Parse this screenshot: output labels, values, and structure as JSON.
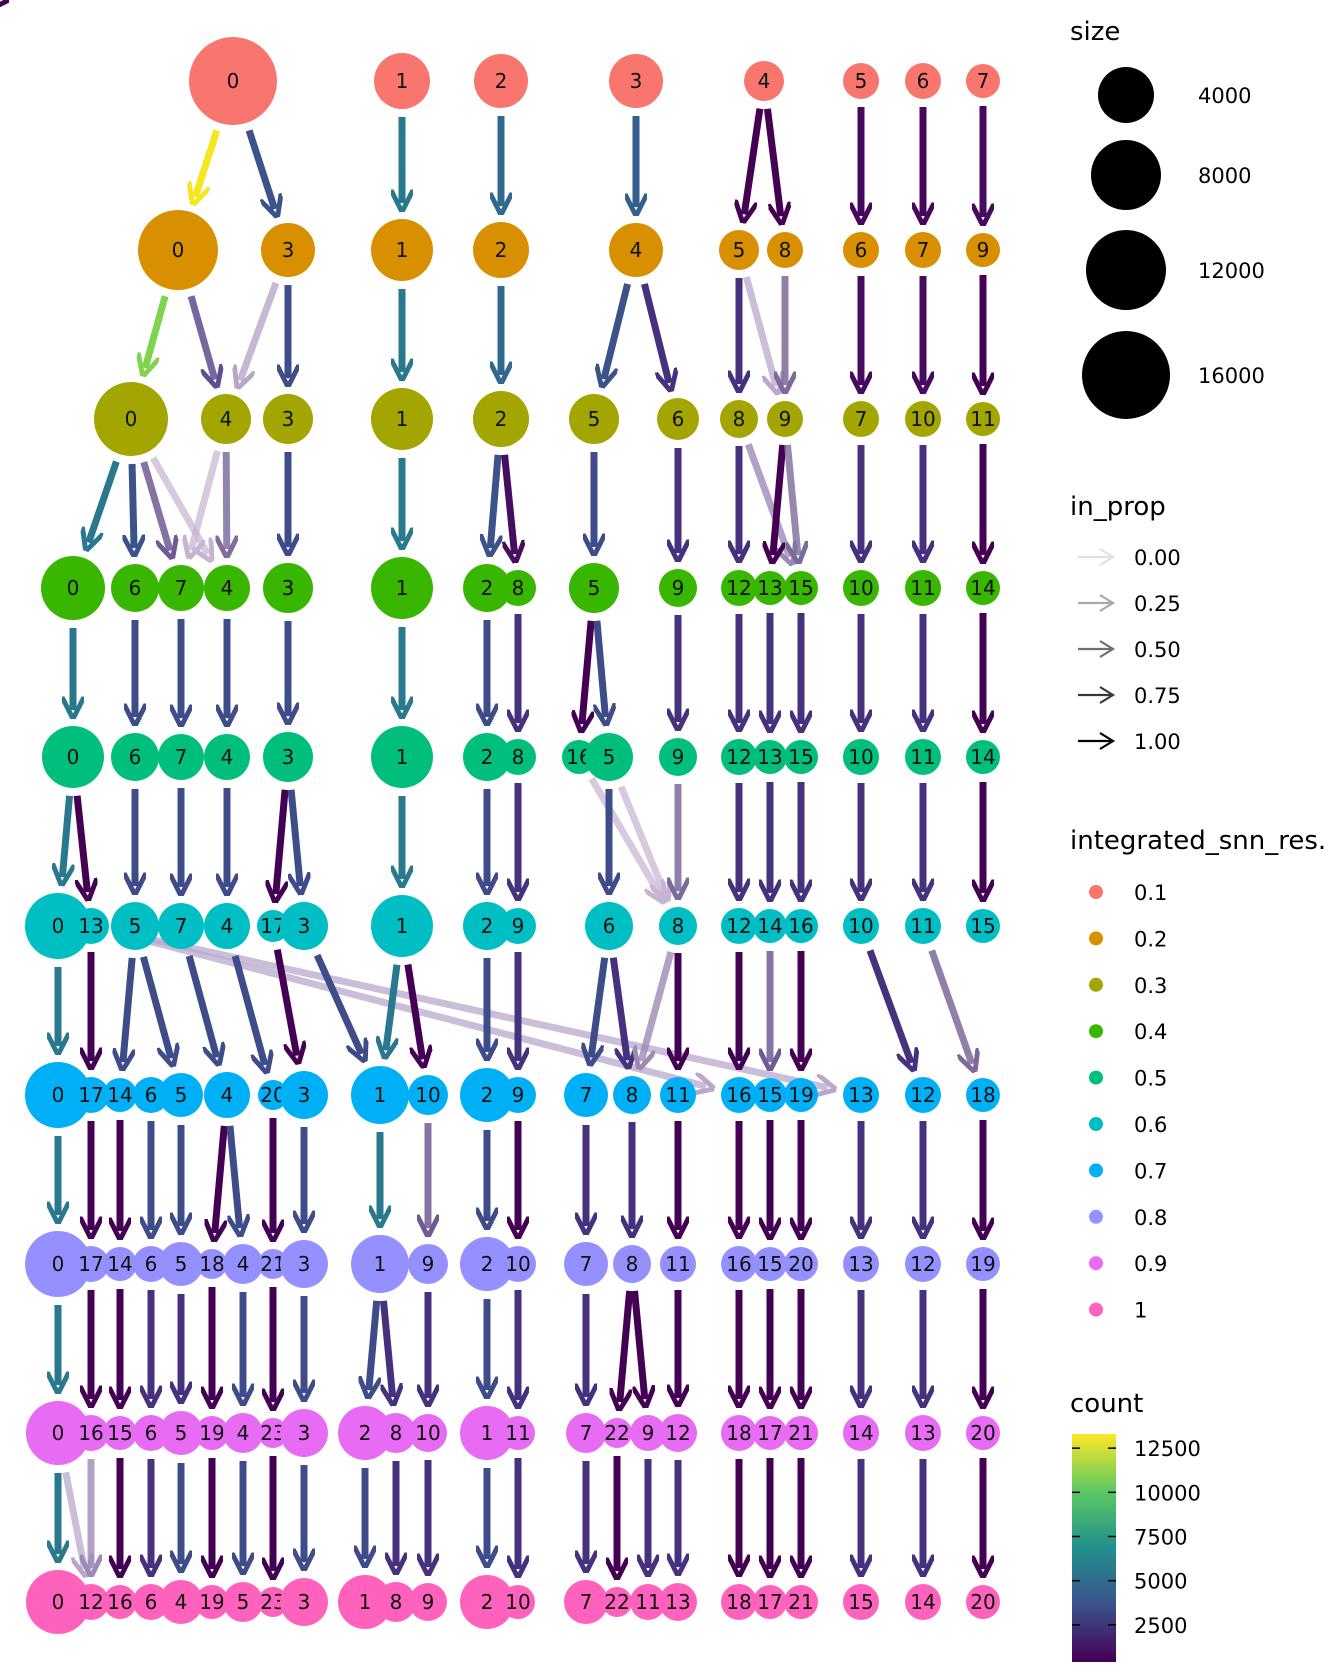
{
  "resolution_labels": [
    "0.1",
    "0.2",
    "0.3",
    "0.4",
    "0.5",
    "0.6",
    "0.7",
    "0.8",
    "0.9",
    "1"
  ],
  "resolution_colors": [
    "#F8766D",
    "#D89000",
    "#A3A500",
    "#39B600",
    "#00BF7D",
    "#00BFC4",
    "#00B0F6",
    "#9590FF",
    "#E76BF3",
    "#FF62BC"
  ],
  "levels": [
    [
      [
        "0",
        0
      ],
      [
        "1",
        1
      ],
      [
        "2",
        2
      ],
      [
        "3",
        3
      ],
      [
        "4",
        4
      ],
      [
        "5",
        5
      ],
      [
        "6",
        6
      ],
      [
        "7",
        7
      ]
    ],
    [
      [
        "0",
        0
      ],
      [
        "3",
        1
      ],
      [
        "1",
        2
      ],
      [
        "2",
        3
      ],
      [
        "4",
        4
      ],
      [
        "5",
        5
      ],
      [
        "8",
        6
      ],
      [
        "6",
        7
      ],
      [
        "7",
        8
      ],
      [
        "9",
        9
      ]
    ],
    [
      [
        "0",
        0
      ],
      [
        "4",
        1
      ],
      [
        "3",
        2
      ],
      [
        "1",
        3
      ],
      [
        "2",
        4
      ],
      [
        "5",
        5
      ],
      [
        "6",
        6
      ],
      [
        "8",
        7
      ],
      [
        "9",
        8
      ],
      [
        "7",
        9
      ],
      [
        "10",
        10
      ],
      [
        "11",
        11
      ]
    ],
    [
      [
        "0",
        0
      ],
      [
        "6",
        1
      ],
      [
        "7",
        2
      ],
      [
        "4",
        3
      ],
      [
        "3",
        4
      ],
      [
        "1",
        5
      ],
      [
        "2",
        6
      ],
      [
        "8",
        7
      ],
      [
        "5",
        8
      ],
      [
        "9",
        9
      ],
      [
        "12",
        10
      ],
      [
        "13",
        11
      ],
      [
        "15",
        12
      ],
      [
        "10",
        13
      ],
      [
        "11",
        14
      ],
      [
        "14",
        15
      ]
    ],
    [
      [
        "0",
        0
      ],
      [
        "6",
        1
      ],
      [
        "7",
        2
      ],
      [
        "4",
        3
      ],
      [
        "3",
        4
      ],
      [
        "1",
        5
      ],
      [
        "2",
        6
      ],
      [
        "8",
        7
      ],
      [
        "16",
        8
      ],
      [
        "5",
        9
      ],
      [
        "9",
        10
      ],
      [
        "12",
        11
      ],
      [
        "13",
        12
      ],
      [
        "15",
        13
      ],
      [
        "10",
        14
      ],
      [
        "11",
        15
      ],
      [
        "14",
        16
      ]
    ],
    [
      [
        "0",
        0
      ],
      [
        "13",
        1
      ],
      [
        "5",
        2
      ],
      [
        "7",
        3
      ],
      [
        "4",
        4
      ],
      [
        "17",
        5
      ],
      [
        "3",
        6
      ],
      [
        "1",
        7
      ],
      [
        "2",
        8
      ],
      [
        "9",
        9
      ],
      [
        "6",
        10
      ],
      [
        "8",
        11
      ],
      [
        "12",
        12
      ],
      [
        "14",
        13
      ],
      [
        "16",
        14
      ],
      [
        "10",
        15
      ],
      [
        "11",
        16
      ],
      [
        "15",
        17
      ]
    ],
    [
      [
        "0",
        0
      ],
      [
        "17",
        1
      ],
      [
        "14",
        2
      ],
      [
        "6",
        3
      ],
      [
        "5",
        4
      ],
      [
        "4",
        5
      ],
      [
        "20",
        6
      ],
      [
        "3",
        7
      ],
      [
        "1",
        8
      ],
      [
        "10",
        9
      ],
      [
        "2",
        10
      ],
      [
        "9",
        11
      ],
      [
        "7",
        12
      ],
      [
        "8",
        13
      ],
      [
        "11",
        14
      ],
      [
        "16",
        15
      ],
      [
        "15",
        16
      ],
      [
        "19",
        17
      ],
      [
        "13",
        18
      ],
      [
        "12",
        19
      ],
      [
        "18",
        20
      ]
    ],
    [
      [
        "0",
        0
      ],
      [
        "17",
        1
      ],
      [
        "14",
        2
      ],
      [
        "6",
        3
      ],
      [
        "5",
        4
      ],
      [
        "18",
        5
      ],
      [
        "4",
        6
      ],
      [
        "21",
        7
      ],
      [
        "3",
        8
      ],
      [
        "1",
        9
      ],
      [
        "9",
        10
      ],
      [
        "2",
        11
      ],
      [
        "10",
        12
      ],
      [
        "7",
        13
      ],
      [
        "8",
        14
      ],
      [
        "11",
        15
      ],
      [
        "16",
        16
      ],
      [
        "15",
        17
      ],
      [
        "20",
        18
      ],
      [
        "13",
        19
      ],
      [
        "12",
        20
      ],
      [
        "19",
        21
      ]
    ],
    [
      [
        "0",
        0
      ],
      [
        "16",
        1
      ],
      [
        "15",
        2
      ],
      [
        "6",
        3
      ],
      [
        "5",
        4
      ],
      [
        "19",
        5
      ],
      [
        "4",
        6
      ],
      [
        "23",
        7
      ],
      [
        "3",
        8
      ],
      [
        "2",
        9
      ],
      [
        "8",
        10
      ],
      [
        "10",
        11
      ],
      [
        "1",
        12
      ],
      [
        "11",
        13
      ],
      [
        "7",
        14
      ],
      [
        "22",
        15
      ],
      [
        "9",
        16
      ],
      [
        "12",
        17
      ],
      [
        "18",
        18
      ],
      [
        "17",
        19
      ],
      [
        "21",
        20
      ],
      [
        "14",
        21
      ],
      [
        "13",
        22
      ],
      [
        "20",
        23
      ]
    ],
    [
      [
        "0",
        0
      ],
      [
        "12",
        1
      ],
      [
        "16",
        2
      ],
      [
        "6",
        3
      ],
      [
        "4",
        4
      ],
      [
        "19",
        5
      ],
      [
        "5",
        6
      ],
      [
        "23",
        7
      ],
      [
        "3",
        8
      ],
      [
        "1",
        9
      ],
      [
        "8",
        10
      ],
      [
        "9",
        11
      ],
      [
        "2",
        12
      ],
      [
        "10",
        13
      ],
      [
        "7",
        14
      ],
      [
        "22",
        15
      ],
      [
        "11",
        16
      ],
      [
        "13",
        17
      ],
      [
        "18",
        18
      ],
      [
        "17",
        19
      ],
      [
        "21",
        20
      ],
      [
        "15",
        21
      ],
      [
        "14",
        22
      ],
      [
        "20",
        23
      ]
    ]
  ],
  "size_legend": {
    "title": "size",
    "entries": [
      {
        "label": "4000",
        "value": 4000
      },
      {
        "label": "8000",
        "value": 8000
      },
      {
        "label": "12000",
        "value": 12000
      },
      {
        "label": "16000",
        "value": 16000
      }
    ]
  },
  "in_prop_legend": {
    "title": "in_prop",
    "entries": [
      {
        "label": "0.00",
        "value": 0.0
      },
      {
        "label": "0.25",
        "value": 0.25
      },
      {
        "label": "0.50",
        "value": 0.5
      },
      {
        "label": "0.75",
        "value": 0.75
      },
      {
        "label": "1.00",
        "value": 1.0
      }
    ]
  },
  "resolution_legend": {
    "title": "integrated_snn_res."
  },
  "count_legend": {
    "title": "count",
    "ticks": [
      {
        "label": "12500",
        "value": 12500
      },
      {
        "label": "10000",
        "value": 10000
      },
      {
        "label": "7500",
        "value": 7500
      },
      {
        "label": "5000",
        "value": 5000
      },
      {
        "label": "2500",
        "value": 2500
      }
    ],
    "range": [
      400,
      13300
    ]
  }
}
